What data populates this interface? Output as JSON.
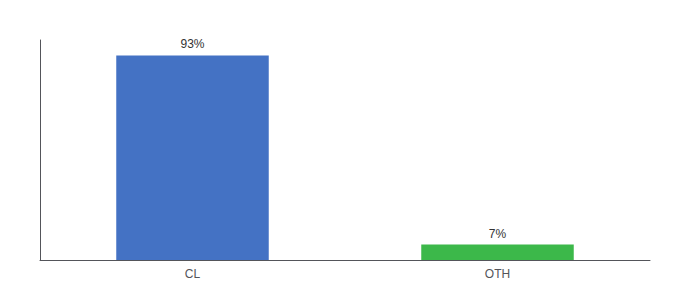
{
  "chart_data": {
    "type": "bar",
    "categories": [
      "CL",
      "OTH"
    ],
    "values": [
      93,
      7
    ],
    "value_labels": [
      "93%",
      "7%"
    ],
    "colors": [
      "#4472C4",
      "#3CB84A"
    ],
    "ylim": [
      0,
      100
    ],
    "data_labels": true,
    "tick_labels": "x",
    "grid": false
  }
}
